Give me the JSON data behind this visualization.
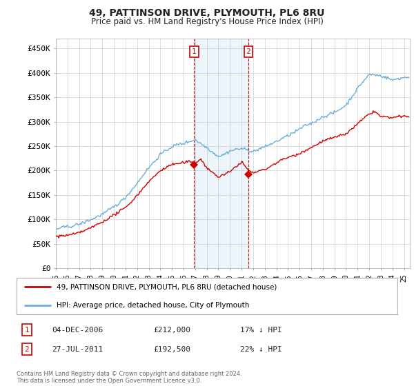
{
  "title": "49, PATTINSON DRIVE, PLYMOUTH, PL6 8RU",
  "subtitle": "Price paid vs. HM Land Registry's House Price Index (HPI)",
  "ylabel_ticks": [
    "£0",
    "£50K",
    "£100K",
    "£150K",
    "£200K",
    "£250K",
    "£300K",
    "£350K",
    "£400K",
    "£450K"
  ],
  "ytick_values": [
    0,
    50000,
    100000,
    150000,
    200000,
    250000,
    300000,
    350000,
    400000,
    450000
  ],
  "ylim": [
    0,
    470000
  ],
  "xlim_start": 1995.0,
  "xlim_end": 2025.5,
  "sale1": {
    "date_num": 2006.92,
    "price": 212000,
    "label": "1"
  },
  "sale2": {
    "date_num": 2011.57,
    "price": 192500,
    "label": "2"
  },
  "hpi_color": "#6baed6",
  "price_color": "#cc0000",
  "marker_color": "#cc0000",
  "legend_line1": "49, PATTINSON DRIVE, PLYMOUTH, PL6 8RU (detached house)",
  "legend_line2": "HPI: Average price, detached house, City of Plymouth",
  "table_row1": [
    "1",
    "04-DEC-2006",
    "£212,000",
    "17% ↓ HPI"
  ],
  "table_row2": [
    "2",
    "27-JUL-2011",
    "£192,500",
    "22% ↓ HPI"
  ],
  "footer": "Contains HM Land Registry data © Crown copyright and database right 2024.\nThis data is licensed under the Open Government Licence v3.0.",
  "background_color": "#ffffff",
  "grid_color": "#d0d0d0"
}
